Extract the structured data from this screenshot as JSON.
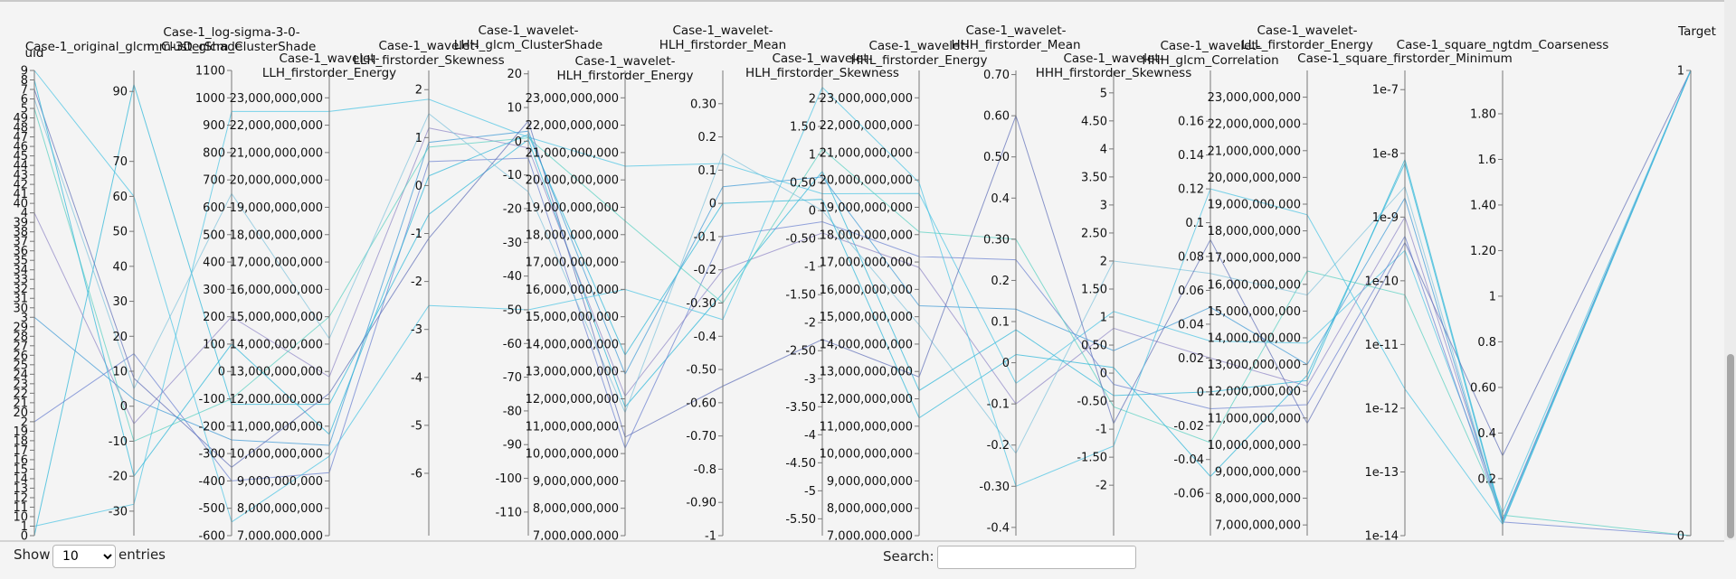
{
  "controls": {
    "show_label": "Show",
    "page_size": "10",
    "page_size_options": [
      "10"
    ],
    "entries_label": "entries",
    "search_label": "Search:",
    "search_value": ""
  },
  "colors": {
    "line_palette": [
      "#29b6d8",
      "#4ac3e3",
      "#6a7fd0",
      "#3d99d6",
      "#8f86c6",
      "#58d0c0",
      "#7fc4dd",
      "#5f6fb8"
    ],
    "accent_lines": [
      "#e8893a",
      "#b2453a",
      "#8aa7a5",
      "#6e5f8a"
    ]
  },
  "chart_data": {
    "type": "parallel_coordinates",
    "dimensions": [
      {
        "name": "uid",
        "scale": "categorical",
        "ticks": [
          "9",
          "8",
          "7",
          "6",
          "5",
          "49",
          "48",
          "47",
          "46",
          "45",
          "44",
          "43",
          "42",
          "41",
          "40",
          "4",
          "39",
          "38",
          "37",
          "36",
          "35",
          "34",
          "33",
          "32",
          "31",
          "30",
          "3",
          "29",
          "28",
          "27",
          "26",
          "25",
          "24",
          "23",
          "22",
          "21",
          "20",
          "2",
          "19",
          "18",
          "17",
          "16",
          "15",
          "14",
          "13",
          "12",
          "11",
          "10",
          "1",
          "0"
        ]
      },
      {
        "name": "Case-1_original_glcm_ClusterShade",
        "scale": "linear",
        "range": [
          -37,
          96
        ],
        "ticks": [
          90,
          70,
          60,
          50,
          40,
          30,
          20,
          10,
          0,
          -10,
          -20,
          -30
        ]
      },
      {
        "name": "Case-1_log-sigma-3-0-mm-3D_glcm_ClusterShade",
        "scale": "linear",
        "range": [
          -600,
          1100
        ],
        "ticks": [
          1100,
          1000,
          900,
          800,
          700,
          600,
          500,
          400,
          300,
          200,
          100,
          0,
          -100,
          -200,
          -300,
          -400,
          -500,
          -600
        ]
      },
      {
        "name": "Case-1_wavelet-LLH_firstorder_Energy",
        "scale": "linear",
        "range": [
          7000000000,
          24000000000
        ],
        "ticks": [
          23000000000,
          22000000000,
          21000000000,
          20000000000,
          19000000000,
          18000000000,
          17000000000,
          16000000000,
          15000000000,
          14000000000,
          13000000000,
          12000000000,
          11000000000,
          10000000000,
          9000000000,
          8000000000,
          7000000000
        ]
      },
      {
        "name": "Case-1_wavelet-LLH_firstorder_Skewness",
        "scale": "linear",
        "range": [
          -7.3,
          2.4
        ],
        "ticks": [
          2,
          1,
          0,
          -1,
          -2,
          -3,
          -4,
          -5,
          -6
        ]
      },
      {
        "name": "Case-1_wavelet-LHH_glcm_ClusterShade",
        "scale": "linear",
        "range": [
          -117,
          21
        ],
        "ticks": [
          20,
          10,
          0,
          -10,
          -20,
          -30,
          -40,
          -50,
          -60,
          -70,
          -80,
          -90,
          -100,
          -110
        ]
      },
      {
        "name": "Case-1_wavelet-HLH_firstorder_Energy",
        "scale": "linear",
        "range": [
          7000000000,
          24000000000
        ],
        "ticks": [
          23000000000,
          22000000000,
          21000000000,
          20000000000,
          19000000000,
          18000000000,
          17000000000,
          16000000000,
          15000000000,
          14000000000,
          13000000000,
          12000000000,
          11000000000,
          10000000000,
          9000000000,
          8000000000,
          7000000000
        ]
      },
      {
        "name": "Case-1_wavelet-HLH_firstorder_Mean",
        "scale": "linear",
        "range": [
          -1.0,
          0.4
        ],
        "ticks": [
          0.3,
          0.2,
          0.1,
          0.0,
          -0.1,
          -0.2,
          -0.3,
          -0.4,
          -0.5,
          -0.6,
          -0.7,
          -0.8,
          -0.9,
          -1.0
        ]
      },
      {
        "name": "Case-1_wavelet-HLH_firstorder_Skewness",
        "scale": "linear",
        "range": [
          -5.8,
          2.5
        ],
        "ticks": [
          2.0,
          1.5,
          1.0,
          0.5,
          0.0,
          -0.5,
          -1.0,
          -1.5,
          -2.0,
          -2.5,
          -3.0,
          -3.5,
          -4.0,
          -4.5,
          -5.0,
          -5.5
        ]
      },
      {
        "name": "Case-1_wavelet-HHL_firstorder_Energy",
        "scale": "linear",
        "range": [
          7000000000,
          24000000000
        ],
        "ticks": [
          23000000000,
          22000000000,
          21000000000,
          20000000000,
          19000000000,
          18000000000,
          17000000000,
          16000000000,
          15000000000,
          14000000000,
          13000000000,
          12000000000,
          11000000000,
          10000000000,
          9000000000,
          8000000000,
          7000000000
        ]
      },
      {
        "name": "Case-1_wavelet-HHH_firstorder_Mean",
        "scale": "linear",
        "range": [
          -0.42,
          0.71
        ],
        "ticks": [
          0.7,
          0.6,
          0.5,
          0.4,
          0.3,
          0.2,
          0.1,
          0.0,
          -0.1,
          -0.2,
          -0.3,
          -0.4
        ]
      },
      {
        "name": "Case-1_wavelet-HHH_firstorder_Skewness",
        "scale": "linear",
        "range": [
          -2.9,
          5.4
        ],
        "ticks": [
          5.0,
          4.5,
          4.0,
          3.5,
          3.0,
          2.5,
          2.0,
          1.5,
          1.0,
          0.5,
          0.0,
          -0.5,
          -1.0,
          -1.5,
          -2.0
        ]
      },
      {
        "name": "Case-1_wavelet-HHH_glcm_Correlation",
        "scale": "linear",
        "range": [
          -0.085,
          0.19
        ],
        "ticks": [
          0.16,
          0.14,
          0.12,
          0.1,
          0.08,
          0.06,
          0.04,
          0.02,
          0.0,
          -0.02,
          -0.04,
          -0.06
        ]
      },
      {
        "name": "Case-1_wavelet-LLL_firstorder_Energy",
        "scale": "linear",
        "range": [
          6600000000,
          24000000000
        ],
        "ticks": [
          23000000000,
          22000000000,
          21000000000,
          20000000000,
          19000000000,
          18000000000,
          17000000000,
          16000000000,
          15000000000,
          14000000000,
          13000000000,
          12000000000,
          11000000000,
          10000000000,
          9000000000,
          8000000000,
          7000000000
        ]
      },
      {
        "name": "Case-1_square_firstorder_Minimum",
        "scale": "log",
        "range": [
          1e-14,
          2e-07
        ],
        "ticks": [
          1e-07,
          1e-08,
          1e-09,
          1e-10,
          1e-11,
          1e-12,
          1e-13,
          1e-14
        ],
        "tick_labels": [
          "1e-7",
          "1e-8",
          "1e-9",
          "1e-10",
          "1e-11",
          "1e-12",
          "1e-13",
          "1e-14"
        ]
      },
      {
        "name": "Case-1_square_ngtdm_Coarseness",
        "scale": "linear",
        "range": [
          -0.05,
          1.99
        ],
        "ticks": [
          1.8,
          1.6,
          1.4,
          1.2,
          1.0,
          0.8,
          0.6,
          0.4,
          0.2
        ]
      },
      {
        "name": "Target",
        "scale": "linear",
        "range": [
          0,
          1
        ],
        "ticks": [
          1,
          0
        ]
      }
    ],
    "records": [
      [
        0,
        92,
        -120,
        11800000000,
        -0.6,
        0.5,
        11700000000,
        -0.27,
        0.7,
        12300000000,
        0.08,
        -0.4,
        0.0,
        12400000000,
        8e-09,
        0.02,
        1
      ],
      [
        1,
        -28,
        950,
        22500000000,
        1.8,
        1.2,
        20500000000,
        0.12,
        0.3,
        19500000000,
        -0.05,
        1.1,
        0.03,
        13800000000,
        3e-10,
        0.05,
        1
      ],
      [
        2,
        15,
        -400,
        9300000000,
        0.5,
        -5,
        10200000000,
        -0.1,
        -0.2,
        17200000000,
        0.25,
        -0.2,
        -0.01,
        11500000000,
        5e-10,
        0.01,
        0
      ],
      [
        3,
        2,
        -250,
        10300000000,
        0.9,
        3,
        12900000000,
        0.05,
        0.6,
        15400000000,
        0.13,
        0.4,
        0.05,
        13000000000,
        2e-09,
        0.0,
        1
      ],
      [
        4,
        -5,
        200,
        12800000000,
        1.2,
        -2,
        12100000000,
        -0.2,
        -0.4,
        16800000000,
        -0.1,
        0.8,
        0.02,
        12200000000,
        1e-09,
        0.02,
        1
      ],
      [
        5,
        -10,
        -100,
        15000000000,
        0.8,
        1,
        18500000000,
        -0.3,
        1.1,
        18100000000,
        0.3,
        -0.6,
        -0.03,
        16500000000,
        6e-11,
        0.04,
        0
      ],
      [
        6,
        5,
        650,
        14200000000,
        1.5,
        -15,
        11500000000,
        0.15,
        0.0,
        14700000000,
        -0.22,
        2.0,
        0.07,
        15600000000,
        3e-09,
        0.0,
        1
      ],
      [
        7,
        8,
        -350,
        12200000000,
        -1.1,
        6,
        10600000000,
        -0.55,
        -2.3,
        12800000000,
        0.6,
        -0.9,
        0.09,
        10800000000,
        4e-10,
        0.3,
        1
      ],
      [
        8,
        -20,
        100,
        10700000000,
        0.2,
        2,
        13600000000,
        0.0,
        0.2,
        11300000000,
        0.02,
        0.1,
        -0.05,
        12600000000,
        7e-09,
        0.01,
        1
      ],
      [
        9,
        60,
        -550,
        9900000000,
        -2.5,
        -50,
        16000000000,
        -0.35,
        2.2,
        19900000000,
        -0.3,
        -1.3,
        0.12,
        18600000000,
        2e-12,
        0.0,
        1
      ]
    ]
  }
}
